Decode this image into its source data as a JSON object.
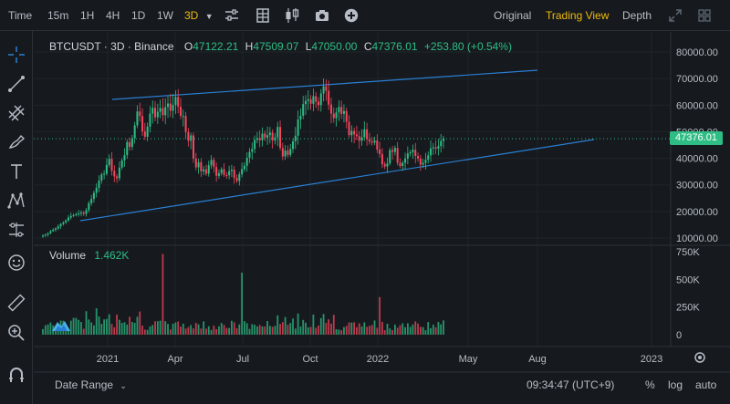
{
  "topbar": {
    "intervals": [
      "Time",
      "15m",
      "1H",
      "4H",
      "1D",
      "1W",
      "3D"
    ],
    "active_interval": "3D",
    "views": [
      "Original",
      "Trading View",
      "Depth"
    ],
    "active_view": "Trading View"
  },
  "legend": {
    "symbol": "BTCUSDT",
    "interval": "3D",
    "exchange": "Binance",
    "open_label": "O",
    "open": "47122.21",
    "high_label": "H",
    "high": "47509.07",
    "low_label": "L",
    "low": "47050.00",
    "close_label": "C",
    "close": "47376.01",
    "change": "+253.80 (+0.54%)"
  },
  "volume": {
    "label": "Volume",
    "value": "1.462K"
  },
  "price_axis": {
    "ticks": [
      "80000.00",
      "70000.00",
      "60000.00",
      "50000.00",
      "40000.00",
      "30000.00",
      "20000.00",
      "10000.00"
    ],
    "current": "47376.01"
  },
  "volume_axis": {
    "ticks": [
      "750K",
      "500K",
      "250K",
      "0"
    ]
  },
  "time_axis": {
    "ticks": [
      "2021",
      "Apr",
      "Jul",
      "Oct",
      "2022",
      "May",
      "Aug",
      "2023"
    ]
  },
  "bottom": {
    "date_range": "Date Range",
    "clock": "09:34:47 (UTC+9)",
    "percent": "%",
    "log": "log",
    "auto": "auto"
  },
  "colors": {
    "up": "#2ebd85",
    "down": "#f6465d",
    "accent": "#f0b90b",
    "trendline": "#2a7fd4"
  },
  "chart_data": {
    "type": "candlestick",
    "ylim": [
      10000,
      80000
    ],
    "close_series": [
      10900,
      11300,
      11800,
      12600,
      13100,
      13600,
      14400,
      15300,
      15900,
      16600,
      17700,
      18300,
      18600,
      18900,
      19300,
      19600,
      19100,
      20500,
      23100,
      24700,
      27000,
      28900,
      31600,
      33900,
      34200,
      37500,
      39800,
      35300,
      33200,
      32500,
      36500,
      39200,
      41200,
      46100,
      44300,
      47500,
      52400,
      57600,
      55900,
      50100,
      48100,
      51900,
      56800,
      59000,
      55400,
      57500,
      58900,
      56200,
      59300,
      60600,
      57900,
      60100,
      63100,
      59400,
      55900,
      55900,
      49900,
      46600,
      48600,
      39900,
      36600,
      38500,
      35100,
      35800,
      34200,
      37400,
      39400,
      36700,
      33400,
      34400,
      35900,
      33700,
      33600,
      35200,
      35700,
      32600,
      31500,
      34000,
      35900,
      37200,
      40200,
      42400,
      43500,
      46900,
      47600,
      46800,
      49300,
      47800,
      48700,
      49700,
      46700,
      47900,
      51800,
      43900,
      40700,
      42900,
      41300,
      43500,
      46400,
      48500,
      54600,
      56000,
      60400,
      61600,
      62200,
      60500,
      63400,
      61300,
      60000,
      64400,
      67100,
      65400,
      60200,
      56800,
      55100,
      57300,
      59300,
      56700,
      57800,
      53700,
      48700,
      50300,
      49000,
      48300,
      46600,
      47900,
      50900,
      47100,
      46300,
      45900,
      46700,
      43300,
      41600,
      37800,
      36900,
      38100,
      43100,
      42400,
      43900,
      38300,
      37100,
      38300,
      39900,
      41800,
      42300,
      43200,
      40900,
      39900,
      37600,
      38300,
      39400,
      41100,
      43700,
      44100,
      43600,
      44600,
      46500,
      47376
    ]
  }
}
